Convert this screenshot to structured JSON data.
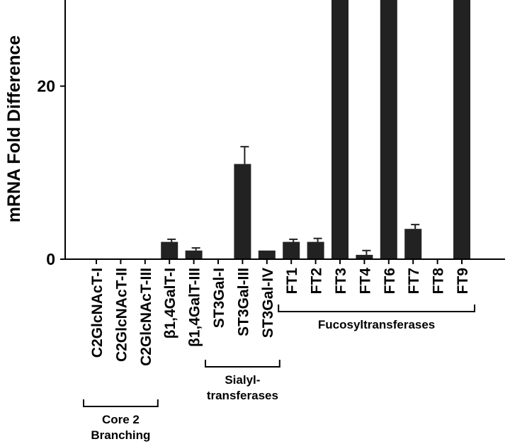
{
  "chart_data": {
    "type": "bar",
    "ylabel": "mRNA Fold Difference",
    "ylim": [
      0,
      145
    ],
    "yticks": [
      0,
      20,
      40,
      60,
      80,
      100,
      120,
      140
    ],
    "grid": false,
    "bar_color": "#222222",
    "categories": [
      "C2GlcNAcT-I",
      "C2GlcNAcT-II",
      "C2GlcNAcT-III",
      "β1,4GalT-I",
      "β1,4GalT-III",
      "ST3Gal-I",
      "ST3Gal-III",
      "ST3Gal-IV",
      "FT1",
      "FT2",
      "FT3",
      "FT4",
      "FT6",
      "FT7",
      "FT8",
      "FT9"
    ],
    "values": [
      0,
      0,
      0,
      2,
      1,
      0,
      11,
      1,
      2,
      2,
      131,
      0.5,
      51,
      3.5,
      0,
      61
    ],
    "errors": [
      0,
      0,
      0,
      0.3,
      0.3,
      0,
      2,
      0.2,
      0.3,
      0.4,
      11,
      0.5,
      12,
      0.5,
      0,
      20
    ],
    "groups": [
      {
        "lines": [
          "Core 2",
          "Branching"
        ],
        "start": 0,
        "end": 2
      },
      {
        "lines": [
          "Sialyl-",
          "transferases"
        ],
        "start": 5,
        "end": 7
      },
      {
        "lines": [
          "Fucosyltransferases"
        ],
        "start": 8,
        "end": 15
      }
    ]
  }
}
